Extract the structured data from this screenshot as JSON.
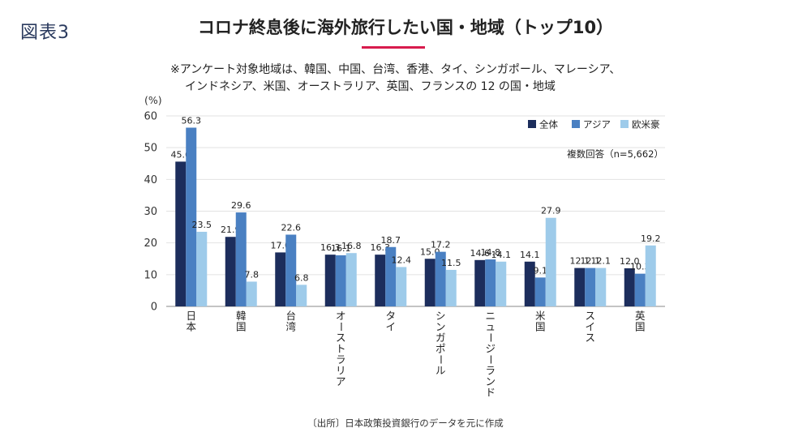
{
  "figure_label": "図表3",
  "title": "コロナ終息後に海外旅行したい国・地域（トップ10）",
  "note_line1": "※アンケート対象地域は、韓国、中国、台湾、香港、タイ、シンガポール、マレーシア、",
  "note_line2": "インドネシア、米国、オーストラリア、英国、フランスの 12 の国・地域",
  "source": "〔出所〕日本政策投資銀行のデータを元に作成",
  "colors": {
    "zentai": "#1c2d5c",
    "asia": "#4a80c2",
    "oubeigou": "#9ecbea",
    "accent": "#d81b4d"
  },
  "chart_data": {
    "type": "bar",
    "title": "コロナ終息後に海外旅行したい国・地域（トップ10）",
    "ylabel": "(%)",
    "xlabel": "",
    "ylim": [
      0,
      60
    ],
    "yticks": [
      0,
      10,
      20,
      30,
      40,
      50,
      60
    ],
    "grid": true,
    "legend_position": "top-right",
    "annotation": "複数回答（n=5,662）",
    "categories": [
      "日本",
      "韓国",
      "台湾",
      "オーストラリア",
      "タイ",
      "シンガポール",
      "ニュージーランド",
      "米国",
      "スイス",
      "英国"
    ],
    "series": [
      {
        "name": "全体",
        "values": [
          45.6,
          21.9,
          17.0,
          16.3,
          16.3,
          15.0,
          14.6,
          14.1,
          12.1,
          12.0
        ]
      },
      {
        "name": "アジア",
        "values": [
          56.3,
          29.6,
          22.6,
          16.1,
          18.7,
          17.2,
          14.8,
          9.1,
          12.1,
          10.3
        ]
      },
      {
        "name": "欧米豪",
        "values": [
          23.5,
          7.8,
          6.8,
          16.8,
          12.4,
          11.5,
          14.1,
          27.9,
          12.1,
          19.2
        ]
      }
    ]
  }
}
